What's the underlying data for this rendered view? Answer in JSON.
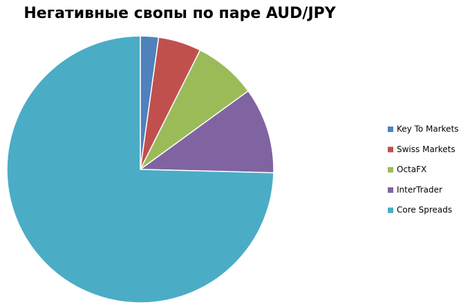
{
  "chart_data": {
    "type": "pie",
    "title": "Негативные свопы по паре AUD/JPY",
    "categories": [
      "Key To Markets",
      "Swiss Markets",
      "OctaFX",
      "InterTrader",
      "Core Spreads"
    ],
    "values": [
      2.2,
      5.2,
      7.6,
      10.4,
      74.6
    ],
    "colors": [
      "#4f81bd",
      "#c0504d",
      "#9bbb59",
      "#8064a2",
      "#4bacc6"
    ],
    "legend": "right"
  }
}
